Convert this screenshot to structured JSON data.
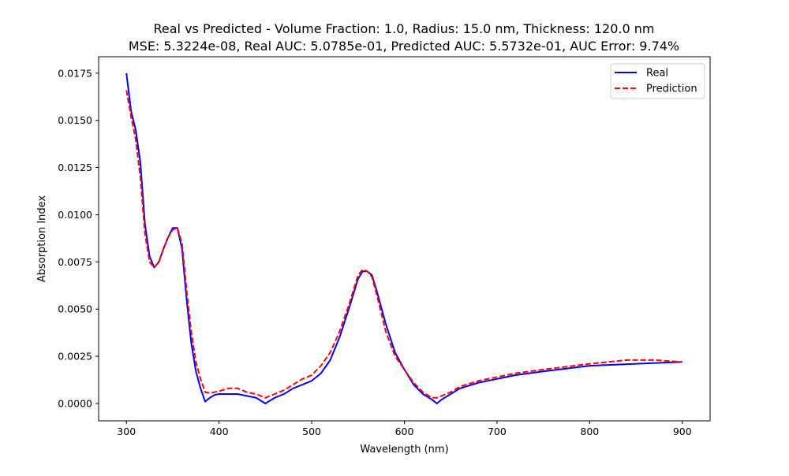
{
  "chart_data": {
    "type": "line",
    "title": "Real vs Predicted - Volume Fraction: 1.0, Radius: 15.0 nm, Thickness: 120.0 nm",
    "subtitle": "MSE: 5.3224e-08, Real AUC: 5.0785e-01, Predicted AUC: 5.5732e-01, AUC Error: 9.74%",
    "xlabel": "Wavelength (nm)",
    "ylabel": "Absorption Index",
    "xlim": [
      270,
      930
    ],
    "ylim": [
      -0.00092,
      0.01837
    ],
    "xticks": [
      300,
      400,
      500,
      600,
      700,
      800,
      900
    ],
    "xtick_labels": [
      "300",
      "400",
      "500",
      "600",
      "700",
      "800",
      "900"
    ],
    "yticks": [
      0.0,
      0.0025,
      0.005,
      0.0075,
      0.01,
      0.0125,
      0.015,
      0.0175
    ],
    "ytick_labels": [
      "0.0000",
      "0.0025",
      "0.0050",
      "0.0075",
      "0.0100",
      "0.0125",
      "0.0150",
      "0.0175"
    ],
    "grid": false,
    "legend_position": "top-right",
    "series": [
      {
        "name": "Real",
        "color": "#0000ff",
        "style": "solid",
        "x": [
          300,
          305,
          310,
          315,
          320,
          325,
          330,
          335,
          340,
          345,
          350,
          355,
          360,
          365,
          370,
          375,
          380,
          385,
          390,
          395,
          400,
          410,
          420,
          430,
          440,
          450,
          460,
          470,
          480,
          490,
          500,
          510,
          520,
          530,
          540,
          550,
          555,
          560,
          565,
          570,
          580,
          590,
          600,
          610,
          620,
          630,
          635,
          640,
          650,
          660,
          680,
          700,
          720,
          750,
          800,
          850,
          900
        ],
        "y": [
          0.0175,
          0.0155,
          0.0145,
          0.0128,
          0.0095,
          0.0078,
          0.0072,
          0.0075,
          0.0082,
          0.0088,
          0.0093,
          0.0093,
          0.0082,
          0.0055,
          0.0032,
          0.0017,
          0.0008,
          0.0001,
          0.0003,
          0.00045,
          0.0005,
          0.0005,
          0.0005,
          0.0004,
          0.0003,
          0.0,
          0.0003,
          0.0005,
          0.0008,
          0.001,
          0.0012,
          0.0016,
          0.0023,
          0.0035,
          0.005,
          0.0066,
          0.007,
          0.007,
          0.0068,
          0.006,
          0.0042,
          0.0027,
          0.0018,
          0.001,
          0.0005,
          0.0002,
          0.0,
          0.0002,
          0.0005,
          0.0008,
          0.0011,
          0.0013,
          0.0015,
          0.0017,
          0.002,
          0.0021,
          0.0022
        ]
      },
      {
        "name": "Prediction",
        "color": "#ff0000",
        "style": "dashed",
        "x": [
          300,
          305,
          310,
          315,
          320,
          325,
          330,
          335,
          340,
          345,
          350,
          355,
          360,
          365,
          370,
          375,
          380,
          385,
          390,
          400,
          410,
          420,
          430,
          440,
          450,
          460,
          470,
          480,
          490,
          500,
          510,
          520,
          530,
          540,
          550,
          555,
          560,
          565,
          570,
          580,
          590,
          600,
          610,
          620,
          630,
          635,
          640,
          650,
          660,
          680,
          700,
          720,
          750,
          800,
          840,
          870,
          900
        ],
        "y": [
          0.0166,
          0.0152,
          0.014,
          0.012,
          0.009,
          0.0075,
          0.0072,
          0.0075,
          0.0082,
          0.0088,
          0.0092,
          0.0093,
          0.0085,
          0.006,
          0.0038,
          0.0022,
          0.0013,
          0.0006,
          0.00055,
          0.00065,
          0.0008,
          0.0008,
          0.0006,
          0.0005,
          0.0003,
          0.0005,
          0.0007,
          0.001,
          0.0013,
          0.0015,
          0.002,
          0.0027,
          0.0038,
          0.0052,
          0.0068,
          0.0071,
          0.007,
          0.0067,
          0.0058,
          0.0038,
          0.0025,
          0.0018,
          0.0011,
          0.0006,
          0.0003,
          0.0003,
          0.0004,
          0.0006,
          0.0009,
          0.0012,
          0.0014,
          0.0016,
          0.0018,
          0.0021,
          0.0023,
          0.0023,
          0.0022
        ]
      }
    ]
  }
}
